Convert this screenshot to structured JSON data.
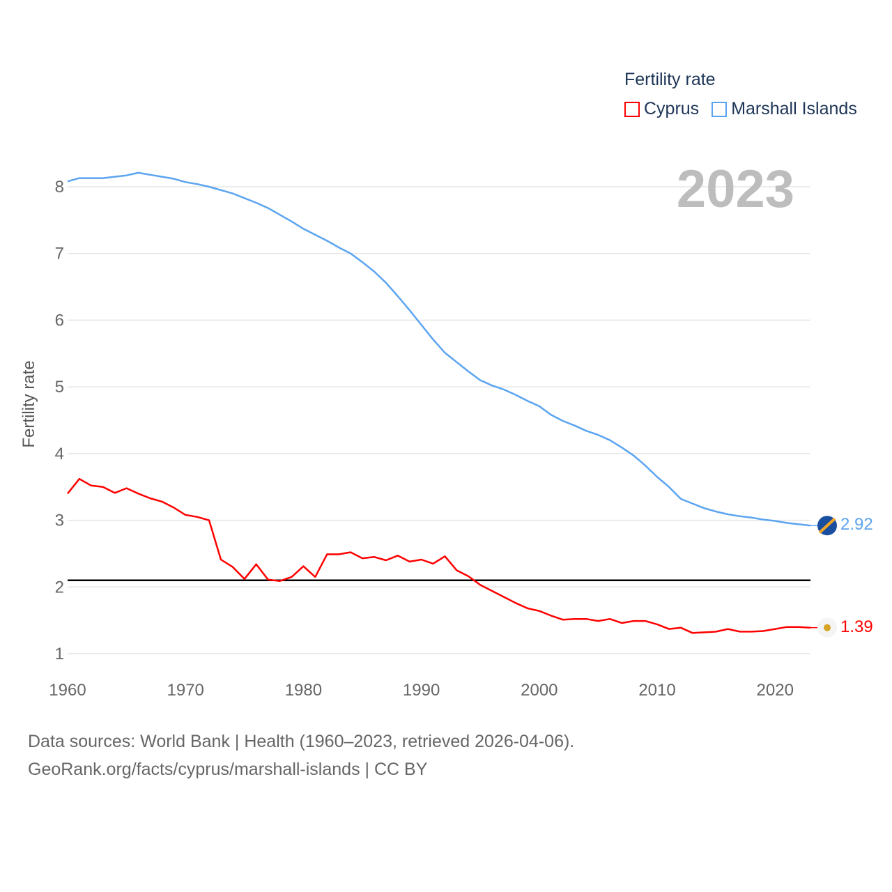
{
  "chart_data": {
    "type": "line",
    "title": "Fertility rate",
    "ylabel": "Fertility rate",
    "xlabel": "",
    "xlim": [
      1960,
      2023
    ],
    "ylim": [
      0.6,
      8.4
    ],
    "x_ticks": [
      "1960",
      "1970",
      "1980",
      "1990",
      "2000",
      "2010",
      "2020"
    ],
    "y_ticks": [
      "1",
      "2",
      "3",
      "4",
      "5",
      "6",
      "7",
      "8"
    ],
    "grid": true,
    "legend_position": "top-right",
    "year_label": "2023",
    "reference_line": 2.1,
    "series": [
      {
        "name": "Cyprus",
        "color": "#ff0000",
        "end_label": "1.39",
        "values": [
          3.4,
          3.62,
          3.52,
          3.5,
          3.41,
          3.48,
          3.4,
          3.33,
          3.28,
          3.19,
          3.08,
          3.05,
          3.0,
          2.41,
          2.3,
          2.12,
          2.34,
          2.11,
          2.09,
          2.15,
          2.31,
          2.15,
          2.49,
          2.49,
          2.52,
          2.43,
          2.45,
          2.4,
          2.47,
          2.38,
          2.41,
          2.35,
          2.46,
          2.25,
          2.16,
          2.03,
          1.94,
          1.85,
          1.76,
          1.68,
          1.64,
          1.57,
          1.51,
          1.52,
          1.52,
          1.49,
          1.52,
          1.46,
          1.49,
          1.49,
          1.44,
          1.37,
          1.39,
          1.31,
          1.32,
          1.33,
          1.37,
          1.33,
          1.33,
          1.34,
          1.37,
          1.4,
          1.4,
          1.39
        ]
      },
      {
        "name": "Marshall Islands",
        "color": "#5ba4f0",
        "end_label": "2.92",
        "values": [
          8.08,
          8.13,
          8.13,
          8.13,
          8.15,
          8.17,
          8.21,
          8.18,
          8.15,
          8.12,
          8.07,
          8.04,
          8.0,
          7.95,
          7.9,
          7.83,
          7.76,
          7.68,
          7.58,
          7.48,
          7.37,
          7.28,
          7.19,
          7.09,
          7.0,
          6.87,
          6.73,
          6.56,
          6.36,
          6.15,
          5.93,
          5.71,
          5.51,
          5.37,
          5.23,
          5.1,
          5.02,
          4.96,
          4.88,
          4.79,
          4.71,
          4.58,
          4.49,
          4.42,
          4.34,
          4.28,
          4.2,
          4.09,
          3.97,
          3.82,
          3.65,
          3.5,
          3.32,
          3.25,
          3.18,
          3.13,
          3.09,
          3.06,
          3.04,
          3.01,
          2.99,
          2.96,
          2.94,
          2.92
        ]
      }
    ],
    "source_line1": "Data sources: World Bank | Health (1960–2023, retrieved 2026-04-06).",
    "source_line2": "GeoRank.org/facts/cyprus/marshall-islands | CC BY"
  }
}
